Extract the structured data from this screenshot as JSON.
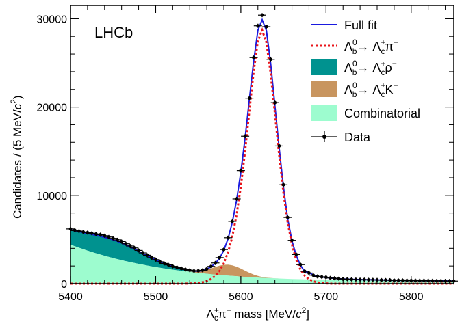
{
  "chart_data": {
    "type": "line",
    "logo": "LHCb",
    "xlabel_parts": {
      "pre": "Λ",
      "sup": "+",
      "sub": "c",
      "mid": "π",
      "sup2": "−",
      "post": " mass [MeV/",
      "unit": "c",
      "unit_sup": "2",
      "close": "]"
    },
    "ylabel_parts": {
      "pre": "Candidates / (5 MeV/",
      "unit": "c",
      "unit_sup": "2",
      "close": ")"
    },
    "xlim": [
      5400,
      5850
    ],
    "ylim": [
      0,
      31500
    ],
    "xticks": [
      5400,
      5500,
      5600,
      5700,
      5800
    ],
    "yticks": [
      0,
      10000,
      20000,
      30000
    ],
    "legend": {
      "position": "top-right",
      "entries": [
        {
          "key": "full_fit",
          "label": "Full fit",
          "style": "line"
        },
        {
          "key": "signal",
          "label": "Λb0→ Λc+π−",
          "style": "dashed"
        },
        {
          "key": "rho",
          "label": "Λb0→ Λc+ρ−",
          "style": "box"
        },
        {
          "key": "kaon",
          "label": "Λb0→ Λc+K−",
          "style": "box"
        },
        {
          "key": "comb",
          "label": "Combinatorial",
          "style": "box"
        },
        {
          "key": "data",
          "label": "Data",
          "style": "marker"
        }
      ]
    },
    "colors": {
      "full_fit": "#1a1adf",
      "signal": "#e8141a",
      "rho": "#00928f",
      "kaon": "#c8955f",
      "comb": "#9dfccf",
      "data": "#000000"
    },
    "x": [
      5400,
      5405,
      5410,
      5415,
      5420,
      5425,
      5430,
      5435,
      5440,
      5445,
      5450,
      5455,
      5460,
      5465,
      5470,
      5475,
      5480,
      5485,
      5490,
      5495,
      5500,
      5505,
      5510,
      5515,
      5520,
      5525,
      5530,
      5535,
      5540,
      5545,
      5550,
      5555,
      5560,
      5565,
      5570,
      5575,
      5580,
      5585,
      5590,
      5595,
      5600,
      5605,
      5610,
      5615,
      5620,
      5625,
      5630,
      5635,
      5640,
      5645,
      5650,
      5655,
      5660,
      5665,
      5670,
      5675,
      5680,
      5685,
      5690,
      5695,
      5700,
      5705,
      5710,
      5715,
      5720,
      5725,
      5730,
      5735,
      5740,
      5745,
      5750,
      5755,
      5760,
      5765,
      5770,
      5775,
      5780,
      5785,
      5790,
      5795,
      5800,
      5805,
      5810,
      5815,
      5820,
      5825,
      5830,
      5835,
      5840,
      5845,
      5850
    ],
    "series": [
      {
        "key": "comb",
        "values": [
          4400,
          4230,
          4060,
          3900,
          3740,
          3590,
          3440,
          3300,
          3160,
          3030,
          2900,
          2780,
          2660,
          2550,
          2440,
          2340,
          2240,
          2140,
          2050,
          1960,
          1880,
          1800,
          1720,
          1650,
          1580,
          1510,
          1450,
          1390,
          1330,
          1270,
          1220,
          1170,
          1120,
          1070,
          1030,
          990,
          950,
          910,
          870,
          840,
          800,
          770,
          740,
          710,
          680,
          660,
          640,
          620,
          600,
          580,
          560,
          540,
          520,
          510,
          500,
          490,
          480,
          470,
          460,
          450,
          440,
          430,
          420,
          410,
          400,
          390,
          380,
          370,
          360,
          350,
          340,
          335,
          330,
          325,
          320,
          315,
          310,
          305,
          300,
          295,
          290,
          285,
          280,
          275,
          270,
          265,
          260,
          255,
          250,
          245,
          240
        ]
      },
      {
        "key": "rho",
        "values": [
          1700,
          1760,
          1820,
          1880,
          1940,
          1990,
          2030,
          2060,
          2080,
          2080,
          2060,
          2010,
          1940,
          1840,
          1720,
          1580,
          1430,
          1270,
          1110,
          960,
          810,
          680,
          560,
          460,
          370,
          300,
          240,
          190,
          150,
          120,
          90,
          70,
          50,
          40,
          30,
          20,
          15,
          10,
          5,
          0,
          0,
          0,
          0,
          0,
          0,
          0,
          0,
          0,
          0,
          0,
          0,
          0,
          0,
          0,
          0,
          0,
          0,
          0,
          0,
          0,
          0,
          0,
          0,
          0,
          0,
          0,
          0,
          0,
          0,
          0,
          0,
          0,
          0,
          0,
          0,
          0,
          0,
          0,
          0,
          0,
          0,
          0,
          0,
          0,
          0,
          0,
          0,
          0,
          0,
          0,
          0
        ]
      },
      {
        "key": "kaon",
        "values": [
          0,
          0,
          0,
          0,
          0,
          0,
          0,
          0,
          0,
          0,
          0,
          0,
          0,
          0,
          0,
          0,
          0,
          0,
          0,
          0,
          0,
          0,
          0,
          0,
          0,
          0,
          0,
          0,
          30,
          80,
          160,
          280,
          450,
          650,
          860,
          1050,
          1180,
          1230,
          1200,
          1080,
          900,
          690,
          490,
          320,
          190,
          100,
          50,
          20,
          10,
          0,
          0,
          0,
          0,
          0,
          0,
          0,
          0,
          0,
          0,
          0,
          0,
          0,
          0,
          0,
          0,
          0,
          0,
          0,
          0,
          0,
          0,
          0,
          0,
          0,
          0,
          0,
          0,
          0,
          0,
          0,
          0,
          0,
          0,
          0,
          0,
          0,
          0,
          0,
          0,
          0,
          0
        ]
      },
      {
        "key": "signal",
        "values": [
          0,
          0,
          0,
          0,
          0,
          0,
          0,
          0,
          0,
          0,
          0,
          0,
          0,
          0,
          0,
          0,
          0,
          0,
          0,
          0,
          0,
          0,
          0,
          0,
          0,
          0,
          0,
          5,
          15,
          40,
          80,
          160,
          300,
          520,
          880,
          1450,
          2300,
          3550,
          5300,
          7800,
          11000,
          15000,
          19500,
          24000,
          27500,
          28700,
          27300,
          23800,
          19200,
          14500,
          10300,
          6900,
          4400,
          2700,
          1600,
          900,
          500,
          270,
          140,
          70,
          30,
          10,
          0,
          0,
          0,
          0,
          0,
          0,
          0,
          0,
          0,
          0,
          0,
          0,
          0,
          0,
          0,
          0,
          0,
          0,
          0,
          0,
          0,
          0,
          0,
          0,
          0,
          0,
          0,
          0,
          0
        ]
      },
      {
        "key": "full_fit",
        "values": [
          6100,
          5990,
          5880,
          5780,
          5680,
          5580,
          5470,
          5360,
          5240,
          5110,
          4960,
          4790,
          4600,
          4390,
          4160,
          3920,
          3670,
          3410,
          3160,
          2920,
          2690,
          2480,
          2280,
          2110,
          1950,
          1810,
          1690,
          1585,
          1495,
          1430,
          1400,
          1470,
          1640,
          1910,
          2300,
          2880,
          3780,
          5090,
          6950,
          9460,
          12640,
          16510,
          20860,
          25190,
          28690,
          29880,
          28670,
          24960,
          20110,
          15330,
          10970,
          7340,
          4830,
          3190,
          2090,
          1360,
          1240,
          980,
          830,
          750,
          700,
          650,
          600,
          550,
          530,
          510,
          490,
          470,
          460,
          450,
          440,
          430,
          420,
          410,
          400,
          390,
          380,
          370,
          360,
          355,
          350,
          345,
          340,
          335,
          330,
          325,
          320,
          315,
          310,
          305,
          300
        ]
      },
      {
        "key": "data",
        "values": [
          6200,
          6050,
          5950,
          5850,
          5780,
          5700,
          5620,
          5540,
          5430,
          5280,
          5130,
          4960,
          4760,
          4510,
          4260,
          4040,
          3760,
          3480,
          3220,
          2950,
          2720,
          2480,
          2290,
          2120,
          1960,
          1840,
          1720,
          1600,
          1520,
          1440,
          1450,
          1510,
          1660,
          1950,
          2340,
          2950,
          3860,
          5200,
          7050,
          9600,
          12800,
          16700,
          21000,
          25600,
          29200,
          30400,
          29100,
          25400,
          20500,
          15600,
          11200,
          7500,
          4900,
          3300,
          2150,
          1400,
          1200,
          950,
          820,
          760,
          720,
          640,
          610,
          560,
          520,
          500,
          480,
          460,
          450,
          450,
          430,
          430,
          420,
          400,
          400,
          390,
          370,
          370,
          360,
          350,
          350,
          340,
          330,
          340,
          330,
          320,
          310,
          310,
          300,
          300,
          290
        ]
      }
    ]
  }
}
